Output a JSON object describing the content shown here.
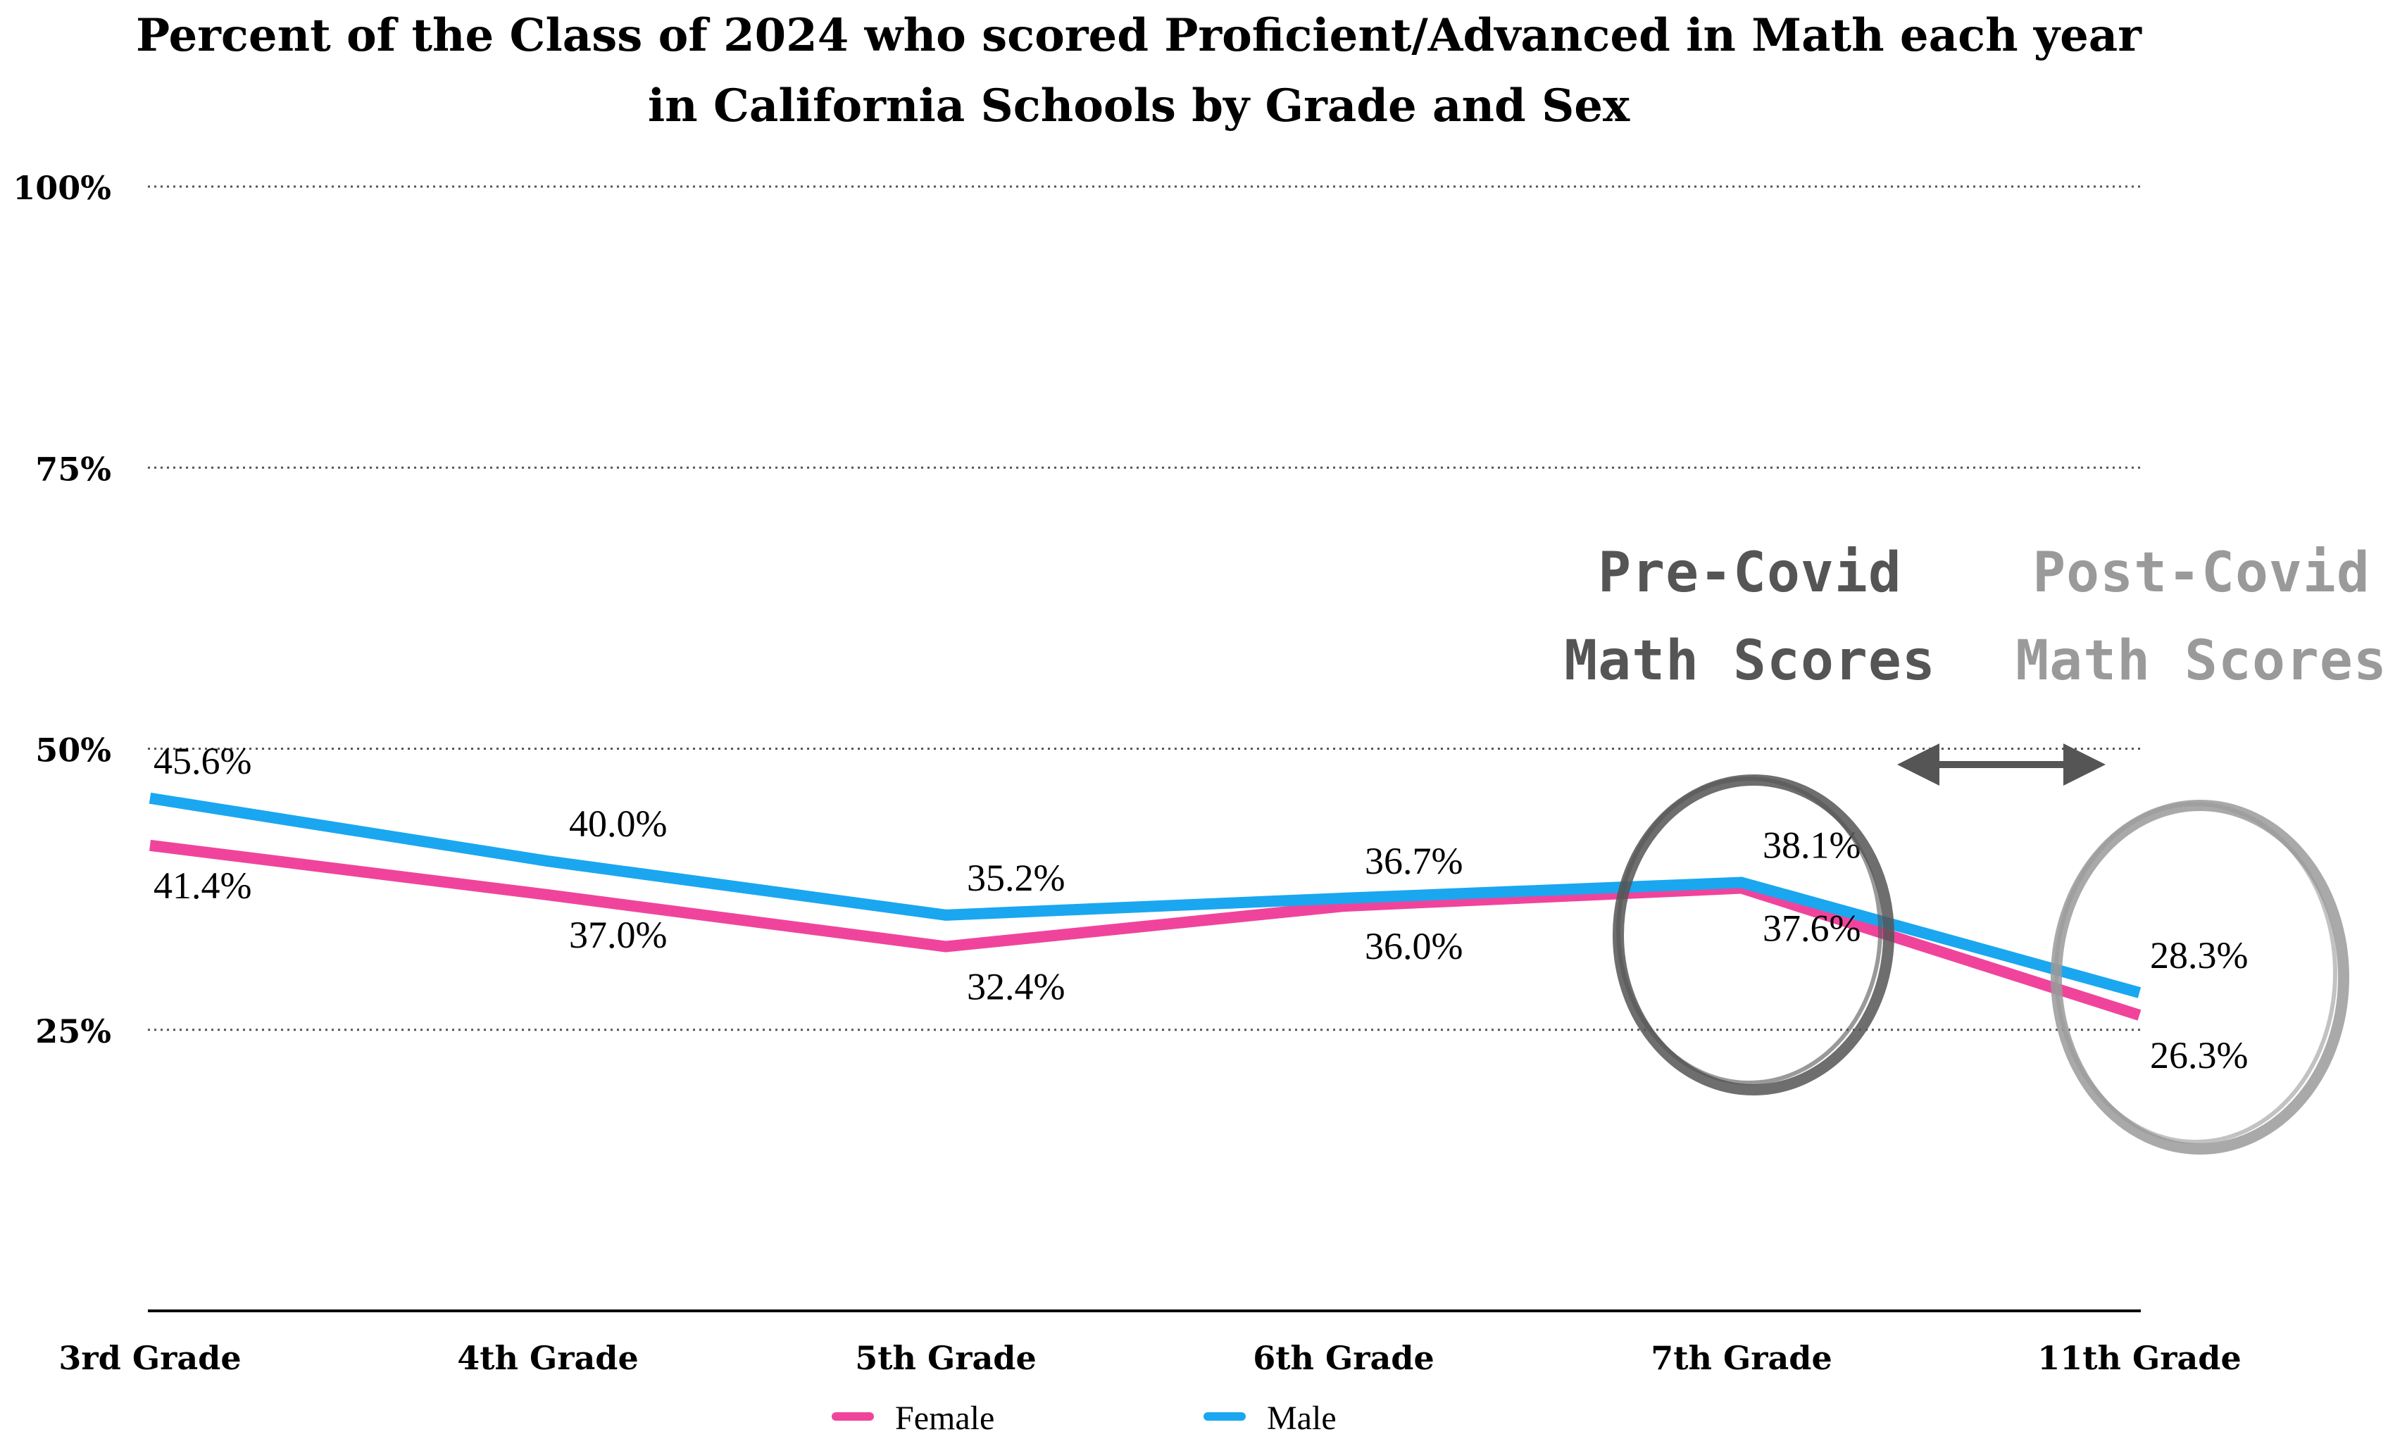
{
  "chart_data": {
    "type": "line",
    "title_lines": [
      "Percent of the Class of 2024 who scored Proficient/Advanced in Math each year",
      "in California Schools by Grade and Sex"
    ],
    "categories": [
      "3rd Grade",
      "4th Grade",
      "5th Grade",
      "6th Grade",
      "7th Grade",
      "11th Grade"
    ],
    "y_ticks": [
      {
        "value": 25,
        "label": "25%"
      },
      {
        "value": 50,
        "label": "50%"
      },
      {
        "value": 75,
        "label": "75%"
      },
      {
        "value": 100,
        "label": "100%"
      }
    ],
    "ylim": [
      0,
      100
    ],
    "grid": "dotted horizontal",
    "series": [
      {
        "name": "Female",
        "color": "#f0449c",
        "values": [
          41.4,
          37.0,
          32.4,
          36.0,
          37.6,
          26.3
        ],
        "labels": [
          "41.4%",
          "37.0%",
          "32.4%",
          "36.0%",
          "37.6%",
          "26.3%"
        ]
      },
      {
        "name": "Male",
        "color": "#1aa7f0",
        "values": [
          45.6,
          40.0,
          35.2,
          36.7,
          38.1,
          28.3
        ],
        "labels": [
          "45.6%",
          "40.0%",
          "35.2%",
          "36.7%",
          "38.1%",
          "28.3%"
        ]
      }
    ],
    "legend_position": "bottom",
    "annotations": {
      "pre_covid": {
        "lines": [
          "Pre-Covid",
          "Math Scores"
        ],
        "color": "#555555"
      },
      "post_covid": {
        "lines": [
          "Post-Covid",
          "Math Scores"
        ],
        "color": "#9a9a9a"
      }
    }
  }
}
